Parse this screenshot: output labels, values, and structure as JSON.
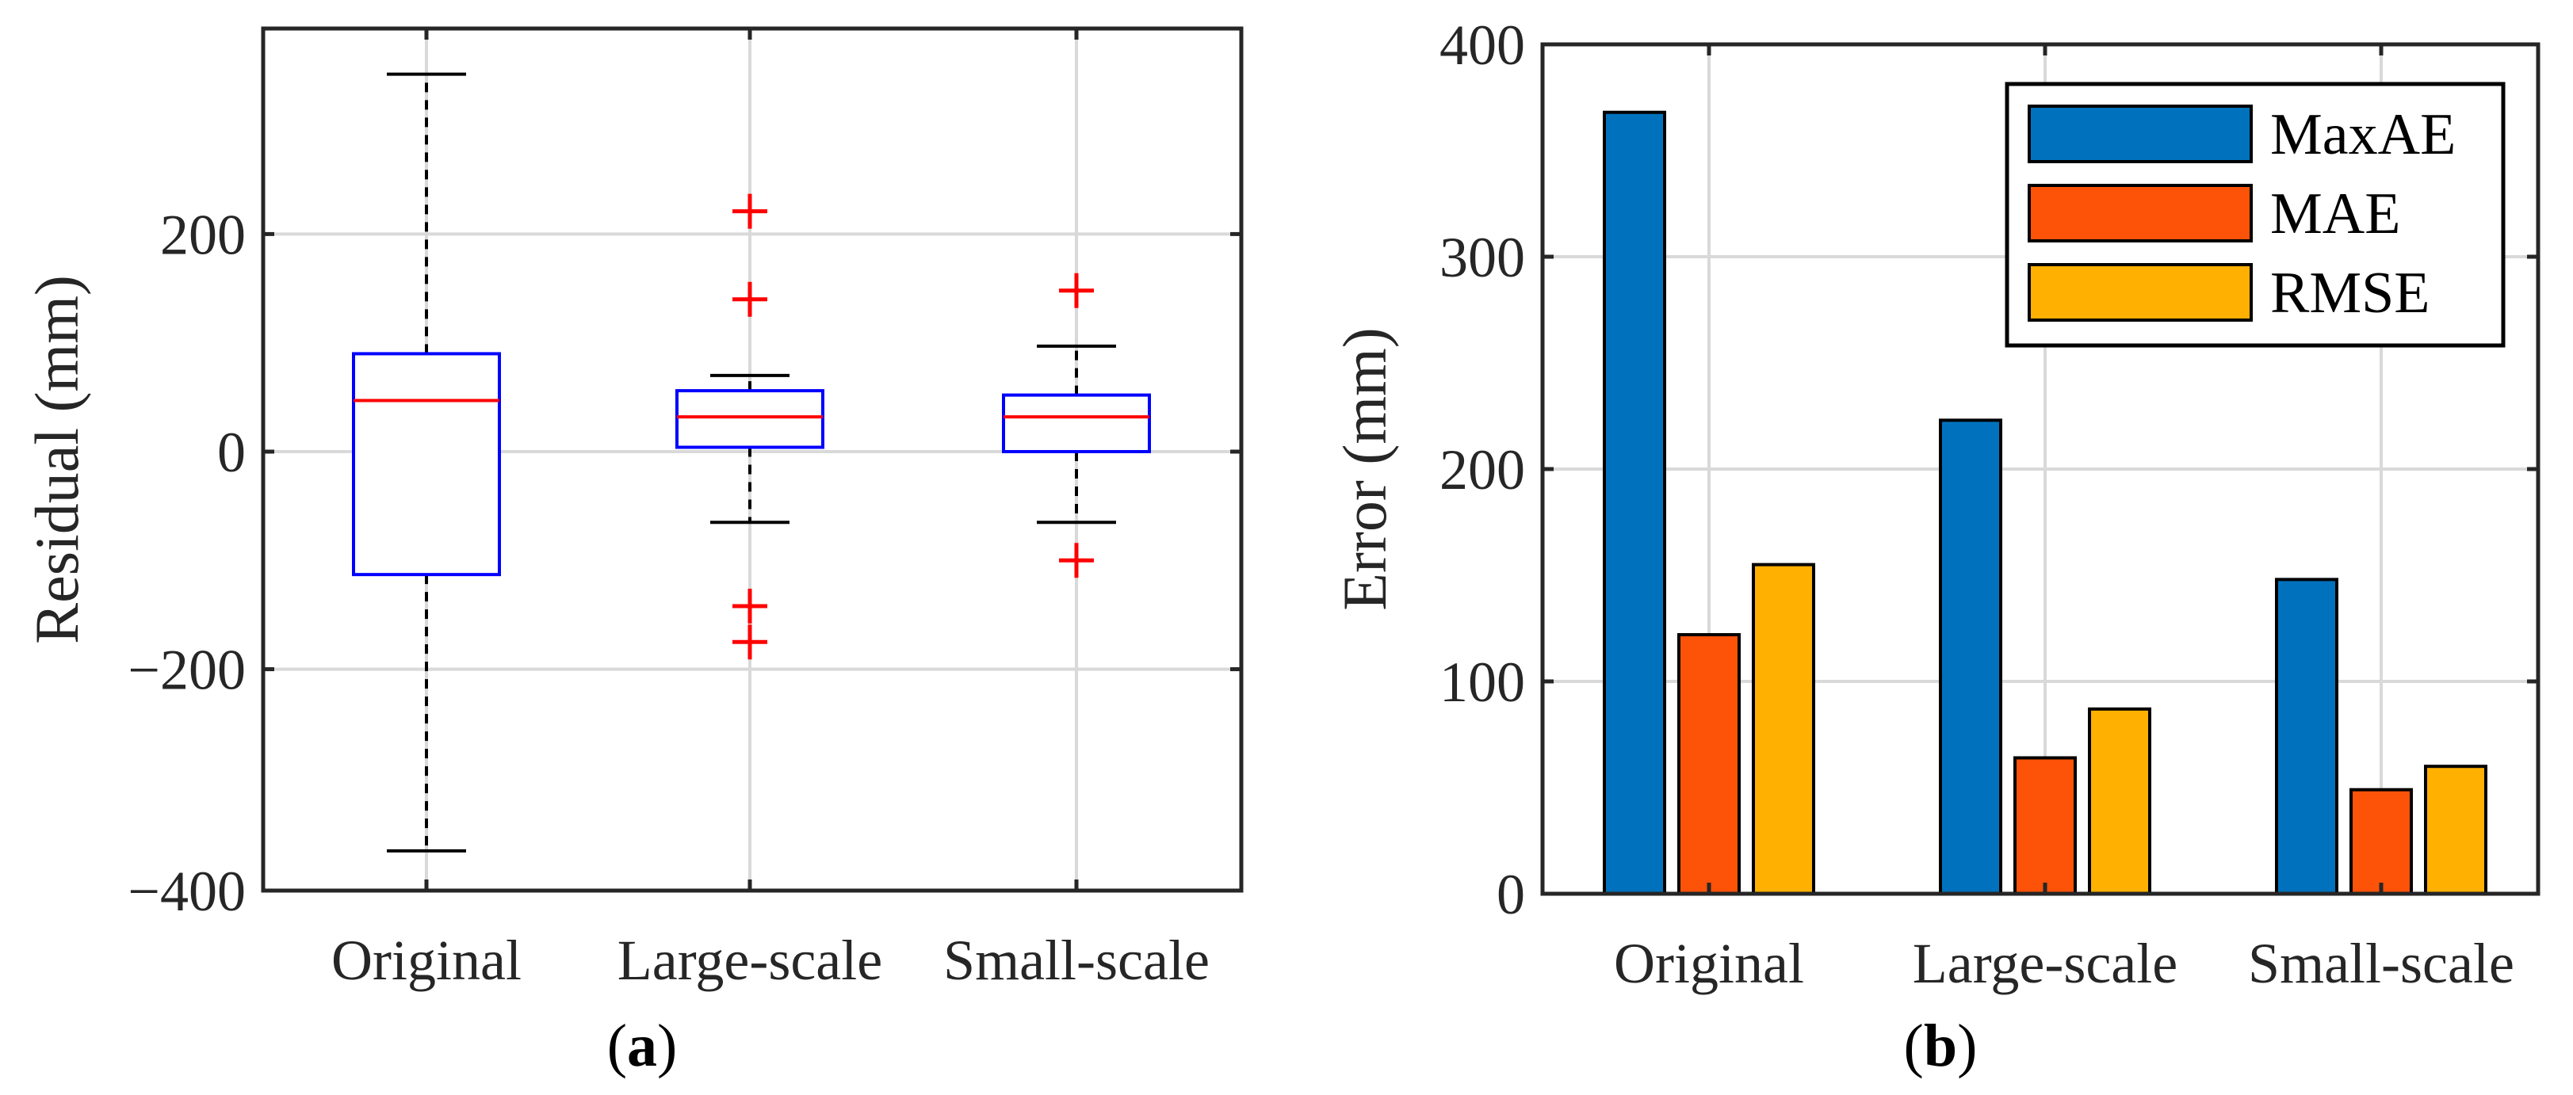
{
  "chart_data": [
    {
      "type": "box",
      "ylabel": "Residual (mm)",
      "ylim": [
        -400,
        400
      ],
      "yticks": [
        -400,
        -200,
        0,
        200
      ],
      "ytick_labels": [
        "−400",
        "−200",
        "0",
        "200"
      ],
      "categories": [
        "Original",
        "Large-scale",
        "Small-scale"
      ],
      "grid": true,
      "boxes": [
        {
          "q1": -113,
          "median": 47,
          "q3": 90,
          "whisker_low": -367,
          "whisker_high": 347,
          "outliers": []
        },
        {
          "q1": 4,
          "median": 32,
          "q3": 56,
          "whisker_low": -65,
          "whisker_high": 70,
          "outliers": [
            221,
            140,
            -142,
            -175
          ]
        },
        {
          "q1": 0,
          "median": 32,
          "q3": 52,
          "whisker_low": -65,
          "whisker_high": 97,
          "outliers": [
            148,
            -100
          ]
        }
      ],
      "colors": {
        "box": "#0000ff",
        "median": "#ff0000",
        "whisker": "#000000",
        "outlier": "#ff0000",
        "grid": "#d9d9d9",
        "axis": "#262626"
      },
      "panel_label": "a"
    },
    {
      "type": "bar",
      "ylabel": "Error (mm)",
      "ylim": [
        0,
        400
      ],
      "yticks": [
        0,
        100,
        200,
        300,
        400
      ],
      "categories": [
        "Original",
        "Large-scale",
        "Small-scale"
      ],
      "grid": true,
      "legend_position": "top-right",
      "series": [
        {
          "name": "MaxAE",
          "color": "#0072bd",
          "values": [
            368,
            223,
            148
          ]
        },
        {
          "name": "MAE",
          "color": "#fc5308",
          "values": [
            122,
            64,
            49
          ]
        },
        {
          "name": "RMSE",
          "color": "#ffb000",
          "values": [
            155,
            87,
            60
          ]
        }
      ],
      "panel_label": "b"
    }
  ]
}
